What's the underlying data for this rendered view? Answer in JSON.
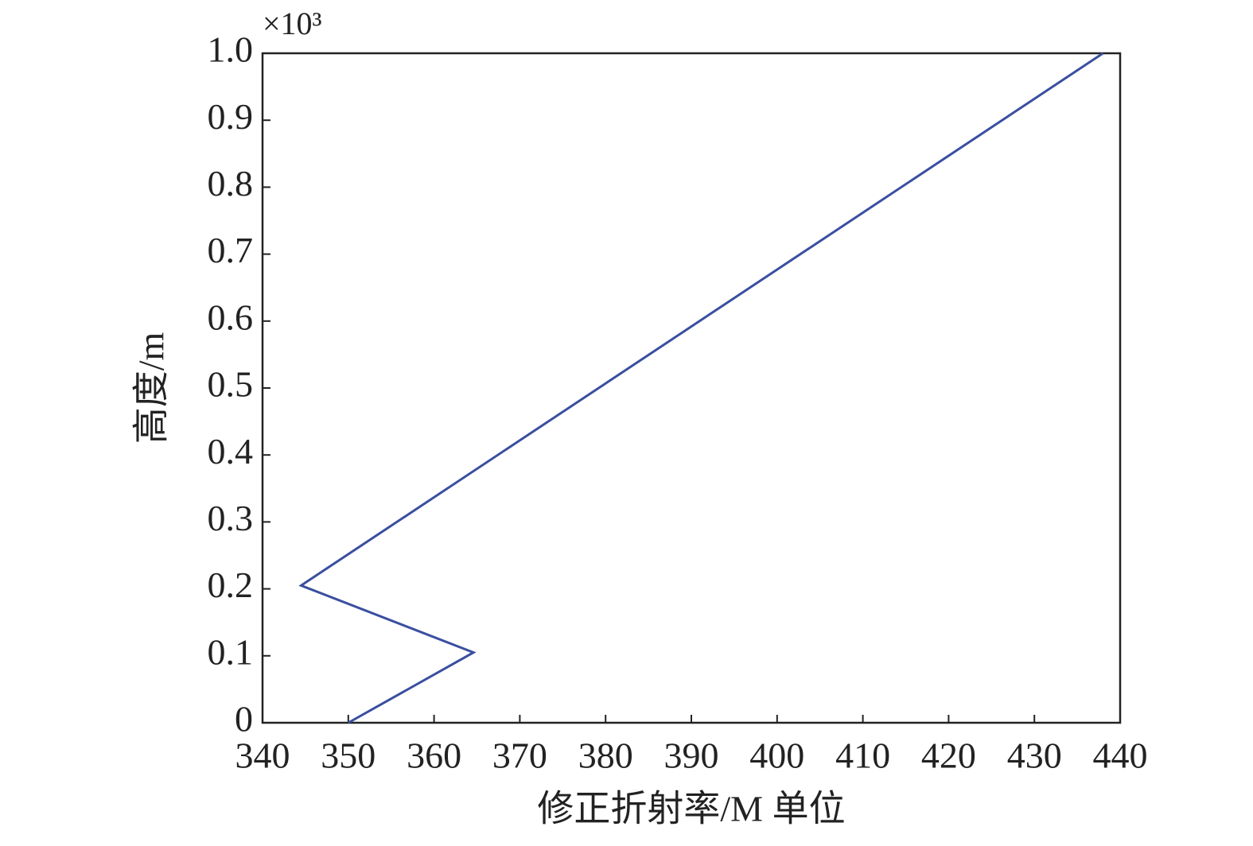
{
  "chart_data": {
    "type": "line",
    "x_label": "修正折射率/M 单位",
    "y_label": "高度/m",
    "y_multiplier": "×10³",
    "x": [
      350,
      364.6,
      344.5,
      438
    ],
    "series": [
      {
        "color": "#3a4fa0",
        "values": [
          0,
          0.105,
          0.205,
          1.0
        ]
      }
    ],
    "xlim": [
      340,
      440
    ],
    "xticks": [
      340,
      350,
      360,
      370,
      380,
      390,
      400,
      410,
      420,
      430,
      440
    ],
    "ylim": [
      0,
      1
    ],
    "yticks": [
      0,
      0.1,
      0.2,
      0.3,
      0.4,
      0.5,
      0.6,
      0.7,
      0.8,
      0.9,
      {
        "value": 1,
        "label": "1.0"
      }
    ],
    "grid": false
  }
}
